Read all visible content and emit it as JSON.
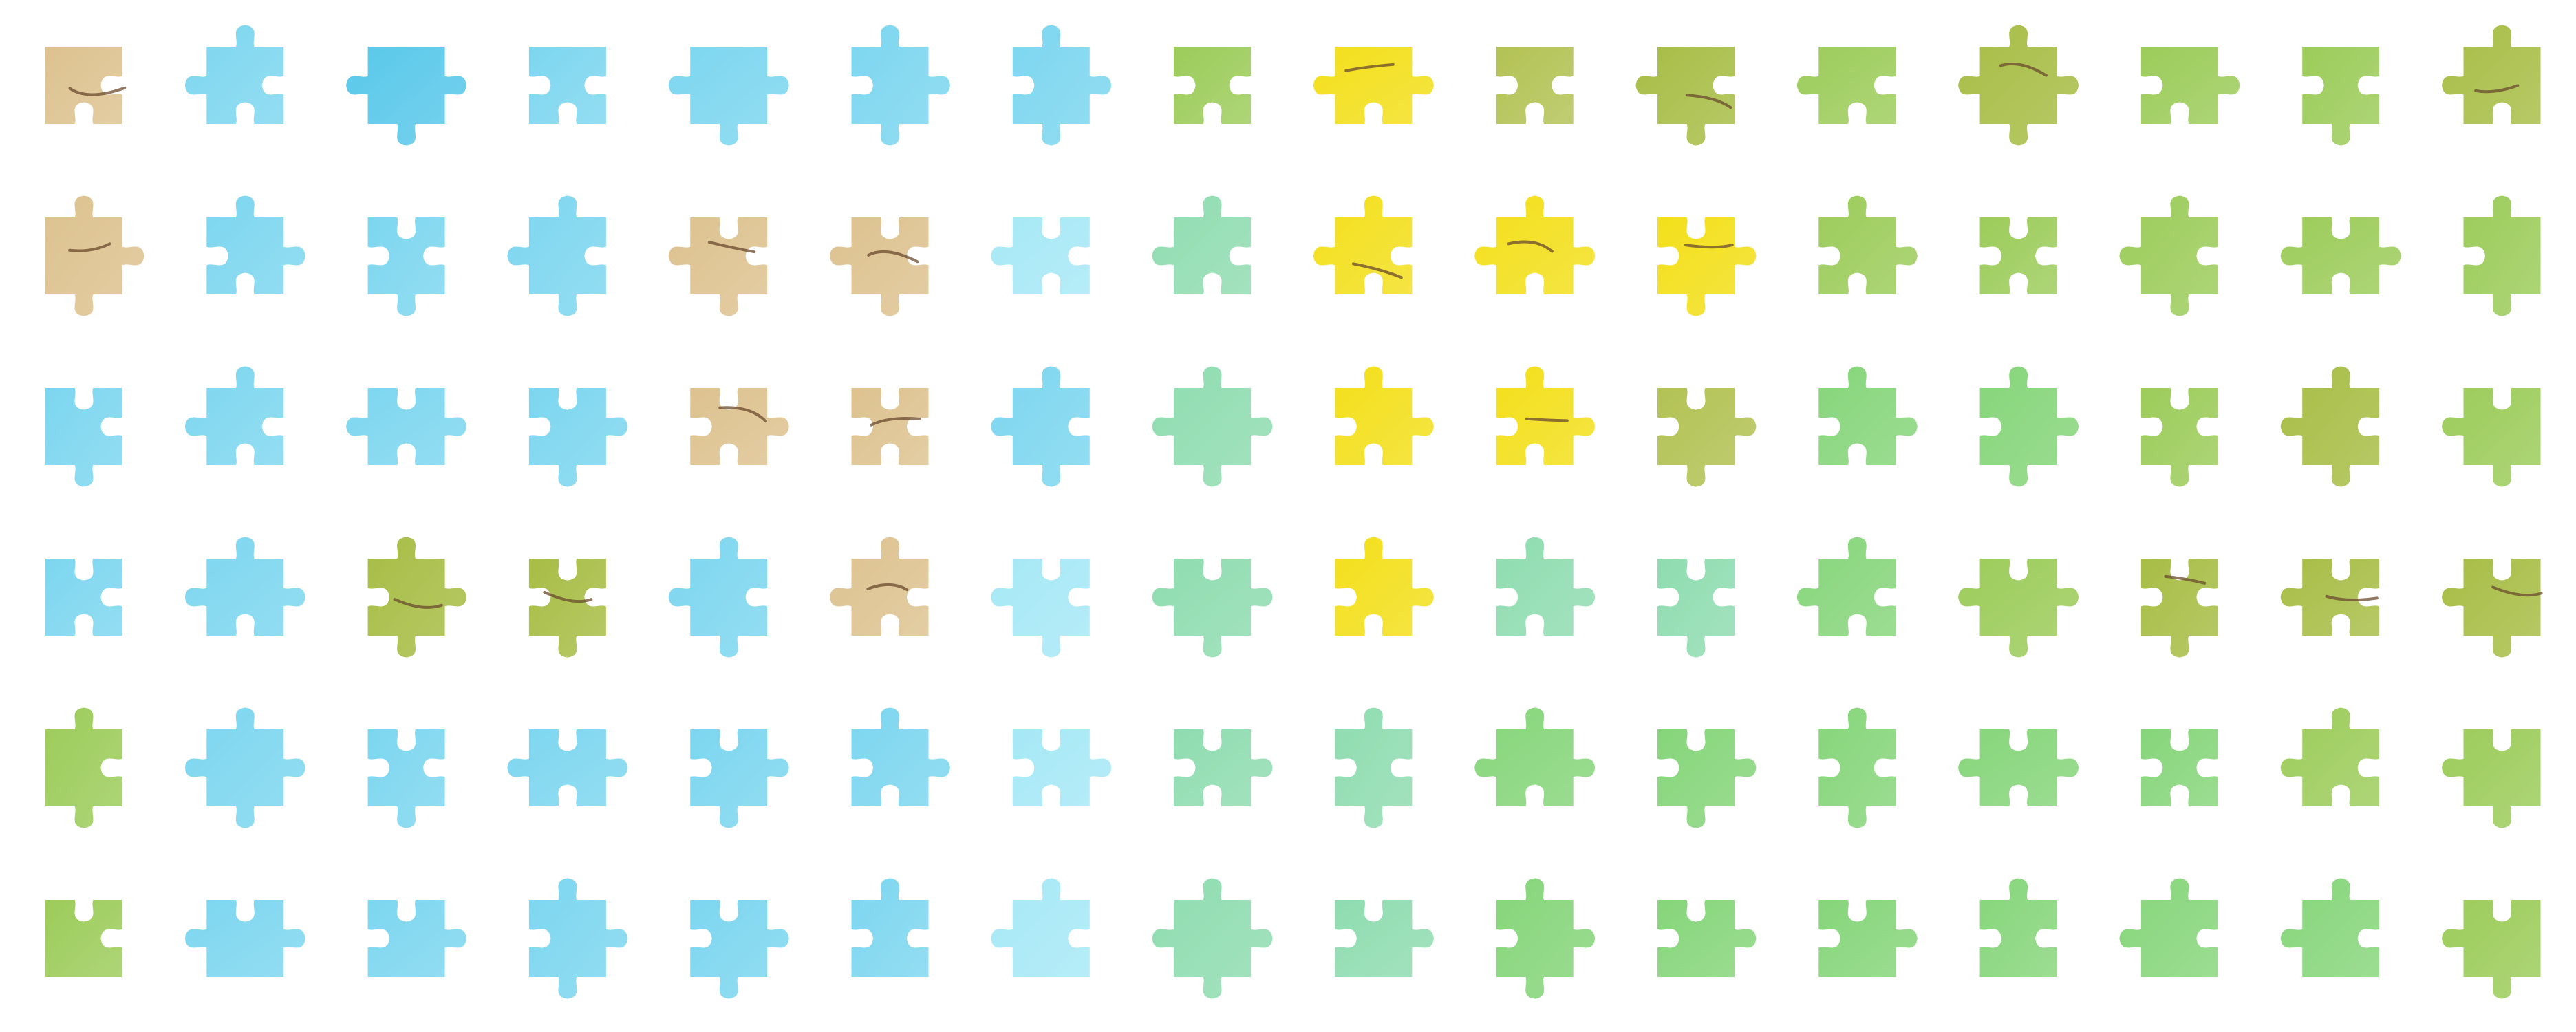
{
  "board": {
    "rows": 6,
    "cols": 16,
    "background": "#ffffff"
  },
  "palette": {
    "sky_light": "#a6e8f6",
    "sky": "#7cd6ef",
    "sky_deep": "#59c8ea",
    "mint": "#8fdcb0",
    "meadow": "#86d57a",
    "grass": "#9ccc5a",
    "olive": "#a7bd45",
    "moss": "#b3c254",
    "yellow": "#f3df1a",
    "tan": "#ddc28f",
    "ink": "#6a4a2e",
    "red": "#b5562e"
  },
  "pieces": [
    [
      "tan",
      "sky",
      "sky_deep",
      "sky",
      "sky",
      "sky",
      "sky",
      "grass",
      "yellow",
      "moss",
      "olive",
      "grass",
      "olive",
      "grass",
      "grass",
      "olive"
    ],
    [
      "tan",
      "sky",
      "sky",
      "sky",
      "tan",
      "tan",
      "sky_light",
      "mint",
      "yellow",
      "yellow",
      "yellow",
      "grass",
      "grass",
      "grass",
      "grass",
      "grass"
    ],
    [
      "sky",
      "sky",
      "sky",
      "sky",
      "tan",
      "tan",
      "sky",
      "mint",
      "yellow",
      "yellow",
      "moss",
      "meadow",
      "meadow",
      "grass",
      "olive",
      "grass"
    ],
    [
      "sky",
      "sky",
      "olive",
      "olive",
      "sky",
      "tan",
      "sky_light",
      "mint",
      "yellow",
      "mint",
      "mint",
      "meadow",
      "grass",
      "olive",
      "olive",
      "olive"
    ],
    [
      "grass",
      "sky",
      "sky",
      "sky",
      "sky",
      "sky",
      "sky_light",
      "mint",
      "mint",
      "meadow",
      "meadow",
      "meadow",
      "meadow",
      "meadow",
      "grass",
      "grass"
    ],
    [
      "grass",
      "sky",
      "sky",
      "sky",
      "sky",
      "sky",
      "sky_light",
      "mint",
      "mint",
      "meadow",
      "meadow",
      "meadow",
      "meadow",
      "meadow",
      "meadow",
      "grass"
    ]
  ]
}
